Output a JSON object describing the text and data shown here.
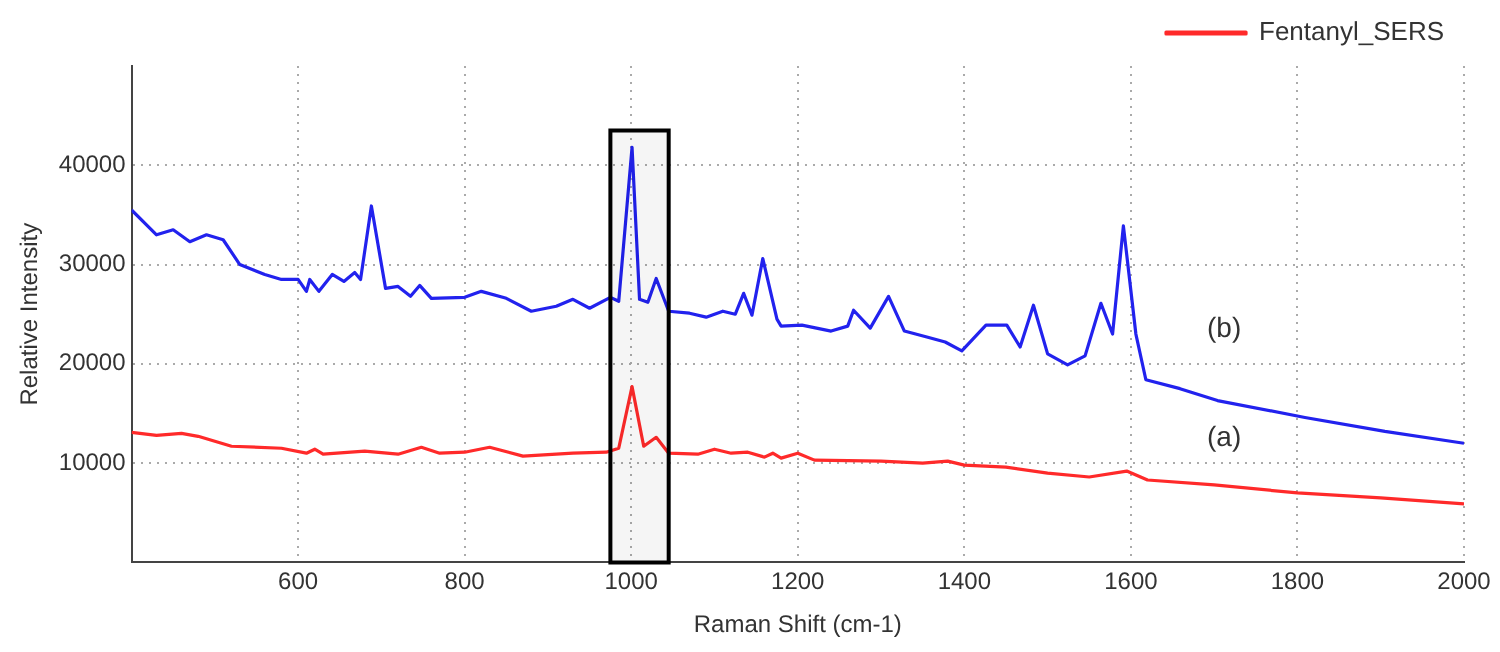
{
  "chart_data": {
    "type": "line",
    "xlabel": "Raman Shift (cm-1)",
    "ylabel": "Relative Intensity",
    "xlim": [
      400,
      2000
    ],
    "xticks": [
      600,
      800,
      1000,
      1200,
      1400,
      1600,
      1800,
      2000
    ],
    "ylim": [
      0,
      50000
    ],
    "yticks": [
      10000,
      20000,
      30000,
      40000
    ],
    "grid": true,
    "legend": "top right",
    "marker": "none",
    "line_style": "solid",
    "bands": [
      {
        "axis": "x",
        "from": 975,
        "to": 1045,
        "color": "#000000"
      }
    ],
    "annotations": [
      "(b)",
      "(a)"
    ],
    "series": [
      {
        "name": "Fentanyl_SERS",
        "color": "#ff2a2a",
        "x": [
          400,
          430,
          460,
          480,
          520,
          580,
          610,
          620,
          630,
          680,
          720,
          748,
          770,
          800,
          830,
          870,
          930,
          970,
          985,
          1001,
          1015,
          1030,
          1045,
          1080,
          1100,
          1120,
          1140,
          1160,
          1170,
          1180,
          1200,
          1220,
          1300,
          1350,
          1380,
          1400,
          1450,
          1500,
          1550,
          1595,
          1620,
          1700,
          1800,
          1900,
          2000
        ],
        "values": [
          13100,
          12800,
          13000,
          12700,
          11700,
          11500,
          11000,
          11400,
          10900,
          11200,
          10900,
          11600,
          11000,
          11100,
          11600,
          10700,
          11000,
          11100,
          11500,
          17700,
          11700,
          12600,
          11000,
          10900,
          11400,
          11000,
          11100,
          10600,
          11000,
          10500,
          11000,
          10300,
          10200,
          10000,
          10200,
          9800,
          9600,
          9000,
          8600,
          9200,
          8300,
          7800,
          7000,
          6500,
          5900
        ]
      },
      {
        "color": "#2222ee",
        "x": [
          400,
          430,
          450,
          470,
          490,
          510,
          530,
          560,
          580,
          600,
          610,
          614,
          625,
          641,
          655,
          668,
          675,
          688,
          705,
          720,
          735,
          746,
          760,
          800,
          820,
          850,
          880,
          910,
          930,
          950,
          975,
          985,
          1001,
          1010,
          1020,
          1030,
          1045,
          1070,
          1090,
          1110,
          1125,
          1135,
          1145,
          1158,
          1175,
          1180,
          1205,
          1240,
          1260,
          1267,
          1287,
          1309,
          1328,
          1355,
          1377,
          1397,
          1426,
          1451,
          1467,
          1483,
          1500,
          1524,
          1545,
          1564,
          1578,
          1591,
          1606,
          1618,
          1659,
          1704,
          1809,
          1905,
          2000
        ],
        "values": [
          35500,
          33000,
          33500,
          32300,
          33000,
          32500,
          30000,
          29000,
          28500,
          28500,
          27300,
          28500,
          27300,
          29000,
          28300,
          29200,
          28500,
          35900,
          27600,
          27800,
          26800,
          27900,
          26600,
          26700,
          27300,
          26600,
          25300,
          25800,
          26500,
          25600,
          26700,
          26300,
          41800,
          26500,
          26200,
          28600,
          25300,
          25100,
          24700,
          25300,
          25000,
          27100,
          24900,
          30600,
          24500,
          23800,
          23900,
          23300,
          23800,
          25400,
          23600,
          26800,
          23300,
          22700,
          22200,
          21300,
          23900,
          23900,
          21700,
          25900,
          21000,
          19900,
          20800,
          26100,
          23000,
          33900,
          23000,
          18400,
          17500,
          16300,
          14600,
          13200,
          12000
        ]
      }
    ]
  }
}
